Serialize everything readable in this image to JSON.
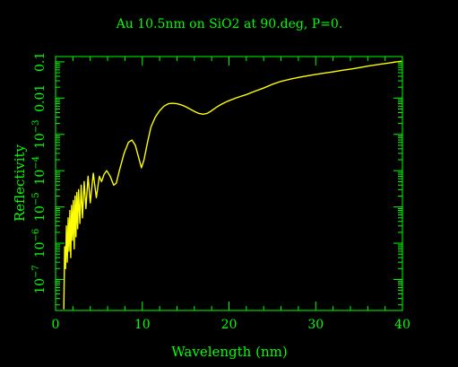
{
  "chart_data": {
    "type": "line",
    "title": "Au 10.5nm on SiO2 at 90.deg, P=0.",
    "xlabel": "Wavelength (nm)",
    "ylabel": "Reflectivity",
    "xlim": [
      0,
      40
    ],
    "ylim": [
      1.4e-08,
      0.14
    ],
    "yscale": "log",
    "grid": false,
    "x_ticks": [
      {
        "value": 0,
        "label": "0"
      },
      {
        "value": 10,
        "label": "10"
      },
      {
        "value": 20,
        "label": "20"
      },
      {
        "value": 30,
        "label": "30"
      },
      {
        "value": 40,
        "label": "40"
      }
    ],
    "y_ticks": [
      {
        "value": 1e-07,
        "mant": "10",
        "exp": "−7"
      },
      {
        "value": 1e-06,
        "mant": "10",
        "exp": "−6"
      },
      {
        "value": 1e-05,
        "mant": "10",
        "exp": "−5"
      },
      {
        "value": 0.0001,
        "mant": "10",
        "exp": "−4"
      },
      {
        "value": 0.001,
        "mant": "10",
        "exp": "−3"
      },
      {
        "value": 0.01,
        "mant": "0.01",
        "exp": ""
      },
      {
        "value": 0.1,
        "mant": "0.1",
        "exp": ""
      }
    ],
    "series": [
      {
        "color": "#ffff00",
        "points": [
          [
            0.95,
            1.5e-08
          ],
          [
            1.05,
            8e-07
          ],
          [
            1.15,
            2e-07
          ],
          [
            1.25,
            3e-06
          ],
          [
            1.35,
            3e-07
          ],
          [
            1.45,
            5e-06
          ],
          [
            1.55,
            6e-07
          ],
          [
            1.65,
            8e-06
          ],
          [
            1.75,
            4e-07
          ],
          [
            1.85,
            1.1e-05
          ],
          [
            1.95,
            1.2e-06
          ],
          [
            2.05,
            1.5e-05
          ],
          [
            2.15,
            7e-07
          ],
          [
            2.25,
            2e-05
          ],
          [
            2.35,
            1.5e-06
          ],
          [
            2.45,
            2.5e-05
          ],
          [
            2.55,
            2.5e-06
          ],
          [
            2.65,
            3e-05
          ],
          [
            2.8,
            3.5e-06
          ],
          [
            2.95,
            4e-05
          ],
          [
            3.1,
            5e-06
          ],
          [
            3.3,
            5e-05
          ],
          [
            3.5,
            9e-06
          ],
          [
            3.75,
            7e-05
          ],
          [
            4.0,
            1.3e-05
          ],
          [
            4.35,
            8.5e-05
          ],
          [
            4.7,
            1.8e-05
          ],
          [
            5.05,
            7e-05
          ],
          [
            5.3,
            5e-05
          ],
          [
            5.6,
            8e-05
          ],
          [
            5.9,
            0.0001
          ],
          [
            6.3,
            7e-05
          ],
          [
            6.7,
            4e-05
          ],
          [
            7.0,
            4.5e-05
          ],
          [
            7.4,
            0.00011
          ],
          [
            7.9,
            0.0003
          ],
          [
            8.4,
            0.0006
          ],
          [
            8.8,
            0.0007
          ],
          [
            9.2,
            0.0005
          ],
          [
            9.6,
            0.00022
          ],
          [
            9.9,
            0.00012
          ],
          [
            10.2,
            0.0002
          ],
          [
            10.6,
            0.0006
          ],
          [
            11.0,
            0.0016
          ],
          [
            11.5,
            0.003
          ],
          [
            12.0,
            0.0045
          ],
          [
            12.5,
            0.006
          ],
          [
            13.0,
            0.007
          ],
          [
            13.5,
            0.0072
          ],
          [
            14.0,
            0.007
          ],
          [
            14.5,
            0.0065
          ],
          [
            15.0,
            0.0058
          ],
          [
            15.5,
            0.005
          ],
          [
            16.0,
            0.0043
          ],
          [
            16.5,
            0.0038
          ],
          [
            17.0,
            0.0036
          ],
          [
            17.5,
            0.0038
          ],
          [
            18.0,
            0.0045
          ],
          [
            18.5,
            0.0055
          ],
          [
            19.0,
            0.0065
          ],
          [
            19.5,
            0.0075
          ],
          [
            20.0,
            0.0085
          ],
          [
            21.0,
            0.0105
          ],
          [
            22.0,
            0.0125
          ],
          [
            23.0,
            0.0155
          ],
          [
            24.0,
            0.019
          ],
          [
            25.0,
            0.024
          ],
          [
            26.0,
            0.029
          ],
          [
            27.0,
            0.033
          ],
          [
            28.0,
            0.037
          ],
          [
            29.0,
            0.041
          ],
          [
            30.0,
            0.045
          ],
          [
            31.0,
            0.049
          ],
          [
            32.0,
            0.053
          ],
          [
            33.0,
            0.058
          ],
          [
            34.0,
            0.063
          ],
          [
            35.0,
            0.069
          ],
          [
            36.0,
            0.076
          ],
          [
            37.0,
            0.083
          ],
          [
            38.0,
            0.09
          ],
          [
            39.0,
            0.097
          ],
          [
            39.9,
            0.104
          ]
        ]
      }
    ]
  }
}
